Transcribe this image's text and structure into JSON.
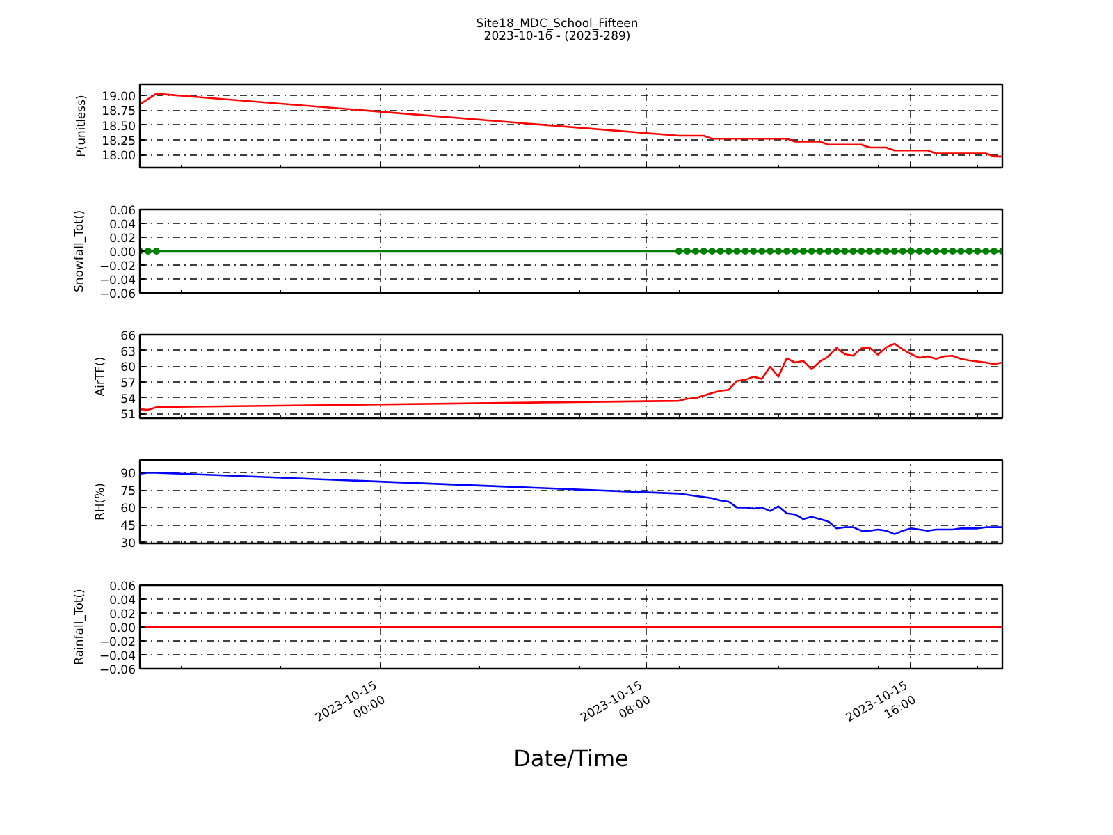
{
  "chart_data": [
    {
      "type": "line",
      "title": "Site18_MDC_School_Fifteen",
      "subtitle": "2023-10-16 - (2023-289)",
      "ylabel": "P(unitless)",
      "x": [
        "2023-10-14T16:45",
        "2023-10-14T17:00",
        "2023-10-14T17:15",
        "2023-10-15T09:00",
        "2023-10-15T09:15",
        "2023-10-15T09:30",
        "2023-10-15T09:45",
        "2023-10-15T10:00",
        "2023-10-15T10:15",
        "2023-10-15T10:30",
        "2023-10-15T10:45",
        "2023-10-15T11:00",
        "2023-10-15T11:15",
        "2023-10-15T11:30",
        "2023-10-15T11:45",
        "2023-10-15T12:00",
        "2023-10-15T12:15",
        "2023-10-15T12:30",
        "2023-10-15T12:45",
        "2023-10-15T13:00",
        "2023-10-15T13:15",
        "2023-10-15T13:30",
        "2023-10-15T13:45",
        "2023-10-15T14:00",
        "2023-10-15T14:15",
        "2023-10-15T14:30",
        "2023-10-15T14:45",
        "2023-10-15T15:00",
        "2023-10-15T15:15",
        "2023-10-15T15:30",
        "2023-10-15T15:45",
        "2023-10-15T16:00",
        "2023-10-15T16:15",
        "2023-10-15T16:30",
        "2023-10-15T16:45",
        "2023-10-15T17:00",
        "2023-10-15T17:15",
        "2023-10-15T17:30",
        "2023-10-15T17:45",
        "2023-10-15T18:00",
        "2023-10-15T18:15",
        "2023-10-15T18:30",
        "2023-10-15T18:45"
      ],
      "xlim": [
        "2023-10-14T16:45",
        "2023-10-15T18:45"
      ],
      "xticks": [
        {
          "value": "2023-10-14T18:00",
          "label": null
        },
        {
          "value": "2023-10-14T21:00",
          "label": null
        },
        {
          "value": "2023-10-15T00:00",
          "label": null
        },
        {
          "value": "2023-10-15T03:00",
          "label": null
        },
        {
          "value": "2023-10-15T06:00",
          "label": null
        },
        {
          "value": "2023-10-15T08:00",
          "label": null
        },
        {
          "value": "2023-10-15T09:00",
          "label": null
        },
        {
          "value": "2023-10-15T12:00",
          "label": null
        },
        {
          "value": "2023-10-15T15:00",
          "label": null
        },
        {
          "value": "2023-10-15T16:00",
          "label": null
        },
        {
          "value": "2023-10-15T18:00",
          "label": null
        }
      ],
      "ylim": [
        17.78,
        19.19
      ],
      "yticks": [
        {
          "value": 18.0,
          "label": "18.00"
        },
        {
          "value": 18.25,
          "label": "18.25"
        },
        {
          "value": 18.5,
          "label": "18.50"
        },
        {
          "value": 18.75,
          "label": "18.75"
        },
        {
          "value": 19.0,
          "label": "19.00"
        }
      ],
      "series": [
        {
          "color": "#ff0000",
          "values": [
            18.85,
            18.94,
            19.03,
            18.32,
            18.32,
            18.32,
            18.32,
            18.27,
            18.27,
            18.27,
            18.27,
            18.27,
            18.27,
            18.27,
            18.27,
            18.27,
            18.27,
            18.22,
            18.22,
            18.22,
            18.22,
            18.17,
            18.17,
            18.17,
            18.17,
            18.17,
            18.12,
            18.12,
            18.12,
            18.07,
            18.07,
            18.07,
            18.07,
            18.07,
            18.02,
            18.02,
            18.02,
            18.02,
            18.02,
            18.02,
            18.02,
            17.97,
            17.97
          ]
        }
      ],
      "grid": true,
      "tick_labels": "y"
    },
    {
      "type": "line",
      "ylabel": "Snowfall_Tot()",
      "x": [
        "2023-10-14T16:45",
        "2023-10-14T17:00",
        "2023-10-14T17:15",
        "2023-10-15T09:00",
        "2023-10-15T09:15",
        "2023-10-15T09:30",
        "2023-10-15T09:45",
        "2023-10-15T10:00",
        "2023-10-15T10:15",
        "2023-10-15T10:30",
        "2023-10-15T10:45",
        "2023-10-15T11:00",
        "2023-10-15T11:15",
        "2023-10-15T11:30",
        "2023-10-15T11:45",
        "2023-10-15T12:00",
        "2023-10-15T12:15",
        "2023-10-15T12:30",
        "2023-10-15T12:45",
        "2023-10-15T13:00",
        "2023-10-15T13:15",
        "2023-10-15T13:30",
        "2023-10-15T13:45",
        "2023-10-15T14:00",
        "2023-10-15T14:15",
        "2023-10-15T14:30",
        "2023-10-15T14:45",
        "2023-10-15T15:00",
        "2023-10-15T15:15",
        "2023-10-15T15:30",
        "2023-10-15T15:45",
        "2023-10-15T16:00",
        "2023-10-15T16:15",
        "2023-10-15T16:30",
        "2023-10-15T16:45",
        "2023-10-15T17:00",
        "2023-10-15T17:15",
        "2023-10-15T17:30",
        "2023-10-15T17:45",
        "2023-10-15T18:00",
        "2023-10-15T18:15",
        "2023-10-15T18:30",
        "2023-10-15T18:45"
      ],
      "xlim": [
        "2023-10-14T16:45",
        "2023-10-15T18:45"
      ],
      "xticks": [
        {
          "value": "2023-10-14T18:00",
          "label": null
        },
        {
          "value": "2023-10-14T21:00",
          "label": null
        },
        {
          "value": "2023-10-15T00:00",
          "label": null
        },
        {
          "value": "2023-10-15T03:00",
          "label": null
        },
        {
          "value": "2023-10-15T06:00",
          "label": null
        },
        {
          "value": "2023-10-15T08:00",
          "label": null
        },
        {
          "value": "2023-10-15T09:00",
          "label": null
        },
        {
          "value": "2023-10-15T12:00",
          "label": null
        },
        {
          "value": "2023-10-15T15:00",
          "label": null
        },
        {
          "value": "2023-10-15T16:00",
          "label": null
        },
        {
          "value": "2023-10-15T18:00",
          "label": null
        }
      ],
      "ylim": [
        -0.06,
        0.06
      ],
      "yticks": [
        {
          "value": -0.06,
          "label": "−0.06"
        },
        {
          "value": -0.04,
          "label": "−0.04"
        },
        {
          "value": -0.02,
          "label": "−0.02"
        },
        {
          "value": 0.0,
          "label": "0.00"
        },
        {
          "value": 0.02,
          "label": "0.02"
        },
        {
          "value": 0.04,
          "label": "0.04"
        },
        {
          "value": 0.06,
          "label": "0.06"
        }
      ],
      "series": [
        {
          "color": "#008000",
          "values": [
            0,
            0,
            0,
            0,
            0,
            0,
            0,
            0,
            0,
            0,
            0,
            0,
            0,
            0,
            0,
            0,
            0,
            0,
            0,
            0,
            0,
            0,
            0,
            0,
            0,
            0,
            0,
            0,
            0,
            0,
            0,
            0,
            0,
            0,
            0,
            0,
            0,
            0,
            0,
            0,
            0,
            0,
            0
          ]
        }
      ],
      "marker": "circle",
      "grid": true,
      "tick_labels": "y"
    },
    {
      "type": "line",
      "ylabel": "AirTF()",
      "x": [
        "2023-10-14T16:45",
        "2023-10-14T17:00",
        "2023-10-14T17:15",
        "2023-10-15T09:00",
        "2023-10-15T09:15",
        "2023-10-15T09:30",
        "2023-10-15T09:45",
        "2023-10-15T10:00",
        "2023-10-15T10:15",
        "2023-10-15T10:30",
        "2023-10-15T10:45",
        "2023-10-15T11:00",
        "2023-10-15T11:15",
        "2023-10-15T11:30",
        "2023-10-15T11:45",
        "2023-10-15T12:00",
        "2023-10-15T12:15",
        "2023-10-15T12:30",
        "2023-10-15T12:45",
        "2023-10-15T13:00",
        "2023-10-15T13:15",
        "2023-10-15T13:30",
        "2023-10-15T13:45",
        "2023-10-15T14:00",
        "2023-10-15T14:15",
        "2023-10-15T14:30",
        "2023-10-15T14:45",
        "2023-10-15T15:00",
        "2023-10-15T15:15",
        "2023-10-15T15:30",
        "2023-10-15T15:45",
        "2023-10-15T16:00",
        "2023-10-15T16:15",
        "2023-10-15T16:30",
        "2023-10-15T16:45",
        "2023-10-15T17:00",
        "2023-10-15T17:15",
        "2023-10-15T17:30",
        "2023-10-15T17:45",
        "2023-10-15T18:00",
        "2023-10-15T18:15",
        "2023-10-15T18:30",
        "2023-10-15T18:45"
      ],
      "xlim": [
        "2023-10-14T16:45",
        "2023-10-15T18:45"
      ],
      "xticks": [
        {
          "value": "2023-10-14T18:00",
          "label": null
        },
        {
          "value": "2023-10-14T21:00",
          "label": null
        },
        {
          "value": "2023-10-15T00:00",
          "label": null
        },
        {
          "value": "2023-10-15T03:00",
          "label": null
        },
        {
          "value": "2023-10-15T06:00",
          "label": null
        },
        {
          "value": "2023-10-15T08:00",
          "label": null
        },
        {
          "value": "2023-10-15T09:00",
          "label": null
        },
        {
          "value": "2023-10-15T12:00",
          "label": null
        },
        {
          "value": "2023-10-15T15:00",
          "label": null
        },
        {
          "value": "2023-10-15T16:00",
          "label": null
        },
        {
          "value": "2023-10-15T18:00",
          "label": null
        }
      ],
      "ylim": [
        50.1,
        66
      ],
      "yticks": [
        51,
        54,
        57,
        60,
        63,
        66
      ],
      "series": [
        {
          "color": "#ff0000",
          "values": [
            51.8,
            51.7,
            52.2,
            53.4,
            53.8,
            53.9,
            54.4,
            54.9,
            55.3,
            55.5,
            57.2,
            57.4,
            58.0,
            57.6,
            59.9,
            58.0,
            61.5,
            60.7,
            61.0,
            59.4,
            60.9,
            61.8,
            63.5,
            62.3,
            62.0,
            63.4,
            63.5,
            62.2,
            63.6,
            64.3,
            63.2,
            62.3,
            61.6,
            61.9,
            61.4,
            61.9,
            62.0,
            61.4,
            61.1,
            60.9,
            60.7,
            60.4,
            60.7
          ]
        }
      ],
      "grid": true,
      "tick_labels": "y"
    },
    {
      "type": "line",
      "ylabel": "RH(%)",
      "x": [
        "2023-10-14T16:45",
        "2023-10-14T17:00",
        "2023-10-14T17:15",
        "2023-10-15T09:00",
        "2023-10-15T09:15",
        "2023-10-15T09:30",
        "2023-10-15T09:45",
        "2023-10-15T10:00",
        "2023-10-15T10:15",
        "2023-10-15T10:30",
        "2023-10-15T10:45",
        "2023-10-15T11:00",
        "2023-10-15T11:15",
        "2023-10-15T11:30",
        "2023-10-15T11:45",
        "2023-10-15T12:00",
        "2023-10-15T12:15",
        "2023-10-15T12:30",
        "2023-10-15T12:45",
        "2023-10-15T13:00",
        "2023-10-15T13:15",
        "2023-10-15T13:30",
        "2023-10-15T13:45",
        "2023-10-15T14:00",
        "2023-10-15T14:15",
        "2023-10-15T14:30",
        "2023-10-15T14:45",
        "2023-10-15T15:00",
        "2023-10-15T15:15",
        "2023-10-15T15:30",
        "2023-10-15T15:45",
        "2023-10-15T16:00",
        "2023-10-15T16:15",
        "2023-10-15T16:30",
        "2023-10-15T16:45",
        "2023-10-15T17:00",
        "2023-10-15T17:15",
        "2023-10-15T17:30",
        "2023-10-15T17:45",
        "2023-10-15T18:00",
        "2023-10-15T18:15",
        "2023-10-15T18:30",
        "2023-10-15T18:45"
      ],
      "xlim": [
        "2023-10-14T16:45",
        "2023-10-15T18:45"
      ],
      "xticks": [
        {
          "value": "2023-10-14T18:00",
          "label": null
        },
        {
          "value": "2023-10-14T21:00",
          "label": null
        },
        {
          "value": "2023-10-15T00:00",
          "label": null
        },
        {
          "value": "2023-10-15T03:00",
          "label": null
        },
        {
          "value": "2023-10-15T06:00",
          "label": null
        },
        {
          "value": "2023-10-15T08:00",
          "label": null
        },
        {
          "value": "2023-10-15T09:00",
          "label": null
        },
        {
          "value": "2023-10-15T12:00",
          "label": null
        },
        {
          "value": "2023-10-15T15:00",
          "label": null
        },
        {
          "value": "2023-10-15T16:00",
          "label": null
        },
        {
          "value": "2023-10-15T18:00",
          "label": null
        }
      ],
      "ylim": [
        29,
        101
      ],
      "yticks": [
        30,
        45,
        60,
        75,
        90
      ],
      "series": [
        {
          "color": "#0000ff",
          "values": [
            89,
            90,
            90,
            72,
            71,
            70,
            69,
            68,
            66,
            65,
            60,
            60,
            59,
            60,
            57,
            61,
            55,
            54,
            50,
            52,
            50,
            48,
            42,
            43,
            43,
            40,
            40,
            41,
            40,
            37,
            40,
            42,
            41,
            40,
            41,
            41,
            41,
            42,
            42,
            42,
            43,
            43,
            43
          ]
        }
      ],
      "grid": true,
      "tick_labels": "y"
    },
    {
      "type": "line",
      "ylabel": "Rainfall_Tot()",
      "xlabel": "Date/Time",
      "x": [
        "2023-10-14T16:45",
        "2023-10-14T17:00",
        "2023-10-14T17:15",
        "2023-10-15T09:00",
        "2023-10-15T09:15",
        "2023-10-15T09:30",
        "2023-10-15T09:45",
        "2023-10-15T10:00",
        "2023-10-15T10:15",
        "2023-10-15T10:30",
        "2023-10-15T10:45",
        "2023-10-15T11:00",
        "2023-10-15T11:15",
        "2023-10-15T11:30",
        "2023-10-15T11:45",
        "2023-10-15T12:00",
        "2023-10-15T12:15",
        "2023-10-15T12:30",
        "2023-10-15T12:45",
        "2023-10-15T13:00",
        "2023-10-15T13:15",
        "2023-10-15T13:30",
        "2023-10-15T13:45",
        "2023-10-15T14:00",
        "2023-10-15T14:15",
        "2023-10-15T14:30",
        "2023-10-15T14:45",
        "2023-10-15T15:00",
        "2023-10-15T15:15",
        "2023-10-15T15:30",
        "2023-10-15T15:45",
        "2023-10-15T16:00",
        "2023-10-15T16:15",
        "2023-10-15T16:30",
        "2023-10-15T16:45",
        "2023-10-15T17:00",
        "2023-10-15T17:15",
        "2023-10-15T17:30",
        "2023-10-15T17:45",
        "2023-10-15T18:00",
        "2023-10-15T18:15",
        "2023-10-15T18:30",
        "2023-10-15T18:45"
      ],
      "xlim": [
        "2023-10-14T16:45",
        "2023-10-15T18:45"
      ],
      "xticks": [
        {
          "value": "2023-10-14T18:00",
          "label": null
        },
        {
          "value": "2023-10-14T21:00",
          "label": null
        },
        {
          "value": "2023-10-15T00:00",
          "label": "2023-10-15\n00:00"
        },
        {
          "value": "2023-10-15T03:00",
          "label": null
        },
        {
          "value": "2023-10-15T06:00",
          "label": null
        },
        {
          "value": "2023-10-15T08:00",
          "label": "2023-10-15\n08:00"
        },
        {
          "value": "2023-10-15T09:00",
          "label": null
        },
        {
          "value": "2023-10-15T12:00",
          "label": null
        },
        {
          "value": "2023-10-15T15:00",
          "label": null
        },
        {
          "value": "2023-10-15T16:00",
          "label": "2023-10-15\n16:00"
        },
        {
          "value": "2023-10-15T18:00",
          "label": null
        }
      ],
      "ylim": [
        -0.06,
        0.06
      ],
      "yticks": [
        {
          "value": -0.06,
          "label": "−0.06"
        },
        {
          "value": -0.04,
          "label": "−0.04"
        },
        {
          "value": -0.02,
          "label": "−0.02"
        },
        {
          "value": 0.0,
          "label": "0.00"
        },
        {
          "value": 0.02,
          "label": "0.02"
        },
        {
          "value": 0.04,
          "label": "0.04"
        },
        {
          "value": 0.06,
          "label": "0.06"
        }
      ],
      "series": [
        {
          "color": "#ff0000",
          "values": [
            0,
            0,
            0,
            0,
            0,
            0,
            0,
            0,
            0,
            0,
            0,
            0,
            0,
            0,
            0,
            0,
            0,
            0,
            0,
            0,
            0,
            0,
            0,
            0,
            0,
            0,
            0,
            0,
            0,
            0,
            0,
            0,
            0,
            0,
            0,
            0,
            0,
            0,
            0,
            0,
            0,
            0,
            0
          ]
        }
      ],
      "grid": true
    }
  ]
}
